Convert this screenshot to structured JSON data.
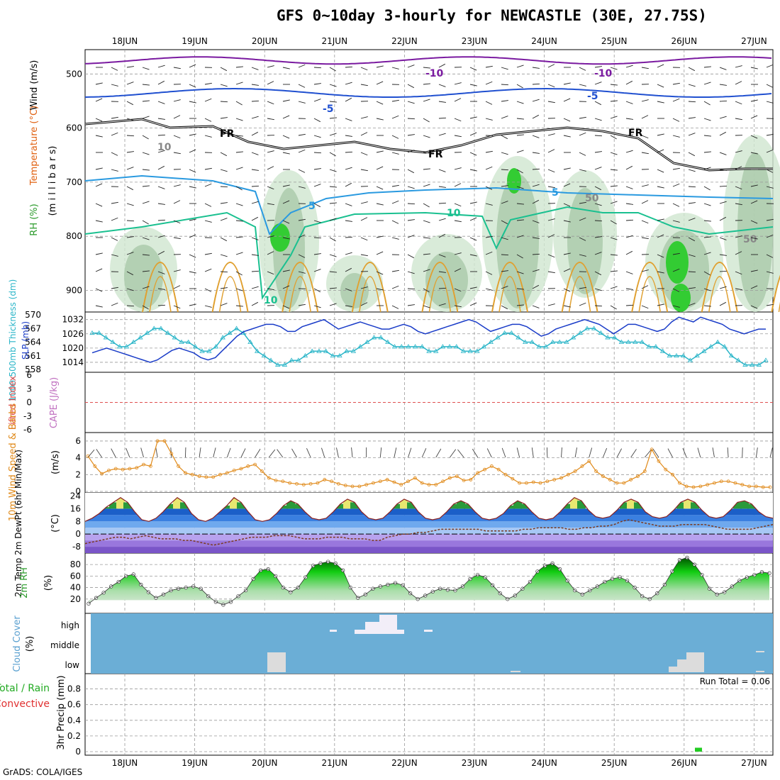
{
  "title": "GFS 0~10day 3-hourly for NEWCASTLE (30E, 27.75S)",
  "credit": "GrADS: COLA/IGES",
  "colors": {
    "temperature_contour": "#3aa0e0",
    "freezing": "#000000",
    "slp": "#1a3cc8",
    "thickness": "#2ab5c8",
    "wind": "#e08a1a",
    "cloud_bg": "#6baed6",
    "rh_green": "#22bb22",
    "precip": "#22cc22",
    "lifted_index": "#e05050",
    "cape": "#c070c0"
  },
  "chart_data": [
    {
      "panel": "upper-air",
      "type": "heatmap",
      "x_labels": [
        "18JUN",
        "19JUN",
        "20JUN",
        "21JUN",
        "22JUN",
        "23JUN",
        "24JUN",
        "25JUN",
        "26JUN",
        "27JUN"
      ],
      "y_ticks": [
        500,
        600,
        700,
        800,
        900
      ],
      "y_label": "(m i l l i b a r s)",
      "ylabels": [
        {
          "text": "Wind (m/s)",
          "color": "#000000"
        },
        {
          "text": "Temperature (°C)",
          "color": "#e06010"
        },
        {
          "text": "RH (%)",
          "color": "#2a9a2a"
        }
      ],
      "contour_labels": [
        "-10",
        "-5",
        "-5",
        "5",
        "5",
        "-10",
        "10",
        "10",
        "50",
        "50",
        "FR",
        "FR",
        "FR",
        "10"
      ]
    },
    {
      "panel": "slp-thickness",
      "type": "line",
      "ylabel_left": "1000-500mb Thickness (dm)",
      "ylabel_right": "SLP (mb)",
      "thickness_ticks": [
        558,
        561,
        564,
        567,
        570
      ],
      "slp_ticks": [
        1014,
        1020,
        1026,
        1032
      ],
      "series": [
        {
          "name": "SLP (mb)",
          "values": [
            1018,
            1019,
            1020,
            1019,
            1018,
            1017,
            1016,
            1015,
            1014,
            1015,
            1017,
            1019,
            1020,
            1019,
            1018,
            1016,
            1015,
            1016,
            1019,
            1022,
            1025,
            1027,
            1028,
            1029,
            1030,
            1030,
            1029,
            1027,
            1027,
            1029,
            1030,
            1031,
            1032,
            1030,
            1028,
            1029,
            1030,
            1031,
            1030,
            1029,
            1028,
            1028,
            1029,
            1030,
            1029,
            1027,
            1026,
            1027,
            1028,
            1029,
            1030,
            1031,
            1032,
            1031,
            1029,
            1027,
            1028,
            1029,
            1030,
            1030,
            1029,
            1027,
            1025,
            1026,
            1028,
            1029,
            1030,
            1031,
            1032,
            1031,
            1030,
            1028,
            1026,
            1028,
            1030,
            1030,
            1029,
            1028,
            1027,
            1028,
            1031,
            1033,
            1032,
            1031,
            1033,
            1032,
            1031,
            1030,
            1028,
            1027,
            1026,
            1027,
            1028,
            1028
          ]
        },
        {
          "name": "1000-500mb Thickness (dm)",
          "values": [
            566,
            566,
            565,
            564,
            563,
            563,
            564,
            565,
            566,
            567,
            567,
            566,
            565,
            564,
            564,
            563,
            562,
            562,
            563,
            565,
            566,
            567,
            566,
            564,
            562,
            561,
            560,
            559,
            559,
            560,
            560,
            561,
            562,
            562,
            562,
            561,
            561,
            562,
            562,
            563,
            564,
            565,
            565,
            564,
            563,
            563,
            563,
            563,
            563,
            562,
            562,
            563,
            563,
            563,
            562,
            562,
            562,
            563,
            564,
            565,
            566,
            566,
            565,
            564,
            564,
            563,
            563,
            564,
            564,
            564,
            565,
            566,
            567,
            567,
            566,
            565,
            565,
            564,
            564,
            564,
            564,
            563,
            563,
            562,
            561,
            561,
            561,
            560,
            561,
            562,
            563,
            564,
            563,
            561,
            560,
            559,
            559,
            559,
            560
          ]
        }
      ]
    },
    {
      "panel": "stability",
      "type": "line",
      "ylabel_left": "Lifted Index",
      "ylabel_right": "CAPE (J/kg)",
      "y_ticks": [
        "6",
        "3",
        "0",
        "-3",
        "-6"
      ],
      "series": [
        {
          "name": "Lifted Index",
          "values": [
            0
          ]
        }
      ]
    },
    {
      "panel": "wind10m",
      "type": "line",
      "ylabel": "10m Wind Speed & Barbs",
      "unit": "(m/s)",
      "y_ticks": [
        0,
        2,
        4,
        6
      ],
      "series": [
        {
          "name": "10m Wind Speed",
          "values": [
            4.2,
            3.0,
            2.1,
            2.5,
            2.7,
            2.6,
            2.7,
            2.8,
            3.2,
            3.0,
            6.0,
            6.0,
            4.5,
            3.0,
            2.2,
            2.0,
            1.8,
            1.7,
            1.7,
            2.0,
            2.2,
            2.5,
            2.7,
            3.0,
            3.2,
            2.4,
            1.6,
            1.3,
            1.2,
            1.0,
            0.9,
            0.8,
            0.9,
            1.0,
            1.4,
            1.2,
            0.9,
            0.7,
            0.6,
            0.6,
            0.8,
            1.0,
            1.2,
            1.4,
            1.1,
            0.8,
            1.2,
            1.6,
            1.0,
            0.8,
            0.8,
            1.2,
            1.6,
            1.8,
            1.3,
            1.4,
            2.2,
            2.6,
            3.0,
            2.6,
            2.0,
            1.5,
            1.0,
            1.0,
            1.1,
            1.0,
            1.2,
            1.4,
            1.6,
            2.0,
            2.4,
            3.0,
            3.6,
            2.4,
            1.8,
            1.4,
            1.0,
            1.0,
            1.4,
            1.8,
            2.4,
            5.0,
            3.6,
            2.6,
            2.0,
            1.0,
            0.6,
            0.5,
            0.6,
            0.8,
            1.0,
            1.2,
            1.2,
            1.0,
            0.8,
            0.6,
            0.6,
            0.5,
            0.5
          ]
        }
      ]
    },
    {
      "panel": "temp2m",
      "type": "line",
      "ylabel": "2m Temp 2m DewPt (6hr Min/Max)",
      "unit": "(°C)",
      "y_ticks": [
        -8,
        0,
        8,
        16,
        24
      ],
      "series": [
        {
          "name": "2m Temp",
          "values": [
            8,
            10,
            13,
            17,
            20,
            23,
            20,
            14,
            9,
            8,
            10,
            14,
            19,
            23,
            20,
            13,
            9,
            8,
            10,
            14,
            18,
            23,
            20,
            14,
            9,
            8,
            9,
            13,
            18,
            21,
            19,
            14,
            10,
            9,
            10,
            14,
            19,
            22,
            20,
            14,
            10,
            9,
            10,
            14,
            19,
            22,
            20,
            14,
            10,
            9,
            10,
            14,
            19,
            21,
            19,
            14,
            10,
            9,
            10,
            13,
            18,
            21,
            19,
            14,
            10,
            9,
            10,
            14,
            19,
            23,
            21,
            15,
            11,
            10,
            11,
            15,
            20,
            22,
            20,
            14,
            11,
            10,
            11,
            15,
            20,
            22,
            20,
            15,
            11,
            10,
            11,
            15,
            20,
            21,
            19,
            14,
            11,
            10
          ]
        },
        {
          "name": "2m DewPt",
          "values": [
            -6,
            -5,
            -4,
            -3,
            -2,
            -2,
            -3,
            -2,
            -1,
            -2,
            -3,
            -3,
            -3,
            -4,
            -4,
            -5,
            -6,
            -7,
            -6,
            -5,
            -4,
            -3,
            -2,
            -2,
            -2,
            -1,
            -1,
            -1,
            -2,
            -3,
            -3,
            -3,
            -2,
            -2,
            -2,
            -3,
            -3,
            -3,
            -4,
            -4,
            -2,
            -1,
            0,
            0,
            1,
            1,
            2,
            3,
            3,
            3,
            3,
            3,
            3,
            2,
            2,
            2,
            2,
            2,
            3,
            3,
            4,
            4,
            4,
            4,
            3,
            3,
            4,
            4,
            5,
            5,
            6,
            8,
            9,
            8,
            7,
            6,
            5,
            5,
            5,
            6,
            6,
            6,
            6,
            5,
            4,
            3,
            3,
            3,
            3,
            4,
            5,
            6
          ]
        }
      ]
    },
    {
      "panel": "rh2m",
      "type": "area",
      "ylabel": "2m RH",
      "unit": "(%)",
      "y_ticks": [
        20,
        40,
        60,
        80
      ],
      "series": [
        {
          "name": "2m RH",
          "values": [
            12,
            22,
            31,
            42,
            50,
            60,
            63,
            45,
            32,
            22,
            28,
            35,
            38,
            40,
            42,
            38,
            25,
            15,
            10,
            15,
            25,
            35,
            55,
            70,
            72,
            60,
            40,
            32,
            40,
            58,
            78,
            82,
            85,
            82,
            70,
            40,
            22,
            28,
            38,
            42,
            45,
            48,
            44,
            30,
            20,
            26,
            33,
            38,
            36,
            35,
            42,
            55,
            62,
            58,
            44,
            30,
            20,
            26,
            38,
            50,
            68,
            78,
            82,
            72,
            52,
            35,
            28,
            35,
            42,
            50,
            55,
            58,
            52,
            40,
            25,
            20,
            30,
            45,
            68,
            88,
            92,
            80,
            62,
            38,
            28,
            32,
            42,
            52,
            58,
            62,
            67,
            65
          ]
        }
      ]
    },
    {
      "panel": "cloud",
      "type": "heatmap",
      "ylabel": "Cloud Cover",
      "unit": "(%)",
      "levels": [
        "high",
        "middle",
        "low"
      ]
    },
    {
      "panel": "precip",
      "type": "bar",
      "ylabel_left": "Total / Rain",
      "ylabel_left2": "Convective",
      "ylabel": "3hr Precip (mm)",
      "y_ticks": [
        0,
        0.2,
        0.4,
        0.6,
        0.8
      ],
      "run_total": "Run Total = 0.06",
      "series": [
        {
          "name": "3hr Precip",
          "values": [
            0.06
          ]
        }
      ]
    }
  ]
}
